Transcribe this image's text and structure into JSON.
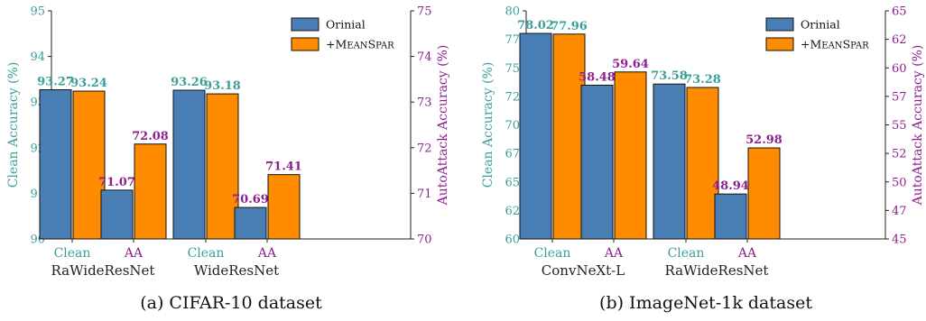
{
  "colors": {
    "original": "#4a7fb5",
    "meanspar": "#ff8c00",
    "clean_axis": "#3a9e9a",
    "aa_axis": "#8e1f8e"
  },
  "chart_data": [
    {
      "type": "bar",
      "caption": "(a) CIFAR-10 dataset",
      "ylabel_left": "Clean Accuracy (%)",
      "ylabel_right": "AutoAttack Accuracy (%)",
      "ylim_left": [
        90,
        95
      ],
      "ylim_right": [
        70,
        75
      ],
      "yticks_left": [
        "90",
        "91",
        "92",
        "93",
        "94",
        "95"
      ],
      "yticks_right": [
        "70",
        "71",
        "72",
        "73",
        "74",
        "75"
      ],
      "legend": [
        "Orinial",
        "+MeanSpar"
      ],
      "legend_position": "top-right",
      "groups": [
        {
          "name": "RaWideResNet",
          "subcategories": [
            "Clean",
            "AA"
          ],
          "clean": {
            "original": 93.27,
            "meanspar": 93.24,
            "original_label": "93.27",
            "meanspar_label": "93.24"
          },
          "aa": {
            "original": 71.07,
            "meanspar": 72.08,
            "original_label": "71.07",
            "meanspar_label": "72.08"
          }
        },
        {
          "name": "WideResNet",
          "subcategories": [
            "Clean",
            "AA"
          ],
          "clean": {
            "original": 93.26,
            "meanspar": 93.18,
            "original_label": "93.26",
            "meanspar_label": "93.18"
          },
          "aa": {
            "original": 70.69,
            "meanspar": 71.41,
            "original_label": "70.69",
            "meanspar_label": "71.41"
          }
        }
      ]
    },
    {
      "type": "bar",
      "caption": "(b) ImageNet-1k dataset",
      "ylabel_left": "Clean Accuracy (%)",
      "ylabel_right": "AutoAttack Accuracy (%)",
      "ylim_left": [
        60,
        80
      ],
      "ylim_right": [
        45,
        65
      ],
      "yticks_left": [
        "60",
        "62",
        "65",
        "67",
        "70",
        "72",
        "75",
        "77",
        "80"
      ],
      "yticks_right": [
        "45",
        "47",
        "50",
        "52",
        "55",
        "57",
        "60",
        "62",
        "65"
      ],
      "legend": [
        "Orinial",
        "+MeanSpar"
      ],
      "legend_position": "top-right",
      "groups": [
        {
          "name": "ConvNeXt-L",
          "subcategories": [
            "Clean",
            "AA"
          ],
          "clean": {
            "original": 78.02,
            "meanspar": 77.96,
            "original_label": "78.02",
            "meanspar_label": "77.96"
          },
          "aa": {
            "original": 58.48,
            "meanspar": 59.64,
            "original_label": "58.48",
            "meanspar_label": "59.64"
          }
        },
        {
          "name": "RaWideResNet",
          "subcategories": [
            "Clean",
            "AA"
          ],
          "clean": {
            "original": 73.58,
            "meanspar": 73.28,
            "original_label": "73.58",
            "meanspar_label": "73.28"
          },
          "aa": {
            "original": 48.94,
            "meanspar": 52.98,
            "original_label": "48.94",
            "meanspar_label": "52.98"
          }
        }
      ]
    }
  ]
}
